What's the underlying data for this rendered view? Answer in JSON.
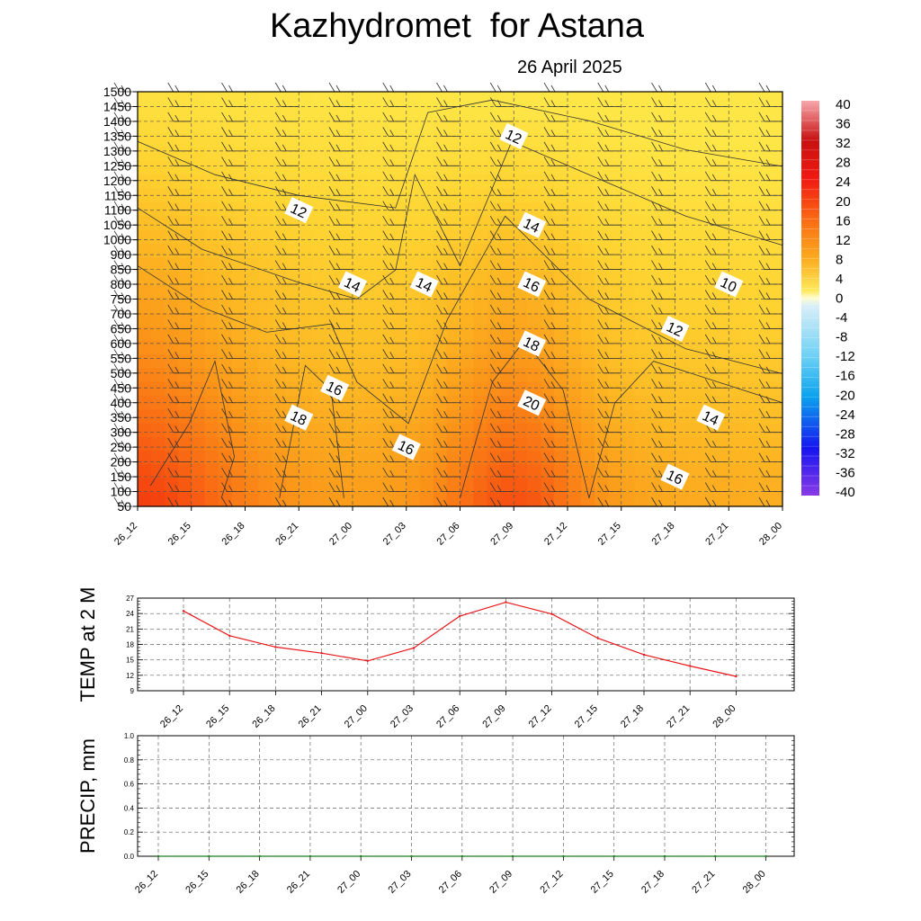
{
  "title": "Kazhydromet  for Astana",
  "subtitle": "26 April 2025",
  "chart_data": [
    {
      "type": "heatmap",
      "ylabel": "",
      "times": [
        "26_12",
        "26_15",
        "26_18",
        "26_21",
        "27_00",
        "27_03",
        "27_06",
        "27_09",
        "27_12",
        "27_15",
        "27_18",
        "27_21",
        "28_00"
      ],
      "levels": [
        50,
        100,
        150,
        200,
        250,
        300,
        350,
        400,
        450,
        500,
        550,
        600,
        650,
        700,
        750,
        800,
        850,
        900,
        1000,
        1050,
        1100,
        1150,
        1200,
        1250,
        1300,
        1350,
        1400,
        1450,
        1500
      ],
      "ylim": [
        50,
        1500
      ],
      "colorbar_labels": [
        "40",
        "36",
        "32",
        "28",
        "24",
        "20",
        "16",
        "12",
        "8",
        "4",
        "0",
        "-4",
        "-8",
        "-12",
        "-16",
        "-20",
        "-24",
        "-28",
        "-32",
        "-36",
        "-40"
      ],
      "contour_labels": [
        {
          "text": "12",
          "time": "27_09",
          "level": 1350
        },
        {
          "text": "12",
          "time": "26_21",
          "level": 1100
        },
        {
          "text": "14",
          "time": "27_10",
          "level": 1050
        },
        {
          "text": "14",
          "time": "27_00",
          "level": 800
        },
        {
          "text": "14",
          "time": "27_04",
          "level": 800
        },
        {
          "text": "16",
          "time": "27_10",
          "level": 800
        },
        {
          "text": "10",
          "time": "27_21",
          "level": 800
        },
        {
          "text": "12",
          "time": "27_18",
          "level": 650
        },
        {
          "text": "18",
          "time": "27_10",
          "level": 600
        },
        {
          "text": "16",
          "time": "26_23",
          "level": 450
        },
        {
          "text": "20",
          "time": "27_10",
          "level": 400
        },
        {
          "text": "18",
          "time": "26_21",
          "level": 350
        },
        {
          "text": "14",
          "time": "27_20",
          "level": 350
        },
        {
          "text": "16",
          "time": "27_03",
          "level": 250
        },
        {
          "text": "16",
          "time": "27_18",
          "level": 150
        }
      ]
    },
    {
      "type": "line",
      "ylabel": "TEMP at 2 M",
      "categories": [
        "26_12",
        "26_15",
        "26_18",
        "26_21",
        "27_00",
        "27_03",
        "27_06",
        "27_09",
        "27_12",
        "27_15",
        "27_18",
        "27_21",
        "28_00"
      ],
      "values": [
        24.5,
        19.7,
        17.5,
        16.3,
        14.8,
        17.3,
        23.5,
        26.2,
        23.9,
        19.2,
        16.0,
        13.8,
        11.8
      ],
      "ylim": [
        9,
        27
      ],
      "yticks": [
        "9",
        "12",
        "15",
        "18",
        "21",
        "24",
        "27"
      ],
      "color": "#e8161b"
    },
    {
      "type": "line",
      "ylabel": "PRECIP, mm",
      "categories": [
        "26_12",
        "26_15",
        "26_18",
        "26_21",
        "27_00",
        "27_03",
        "27_06",
        "27_09",
        "27_12",
        "27_15",
        "27_18",
        "27_21",
        "28_00"
      ],
      "values": [
        0,
        0,
        0,
        0,
        0,
        0,
        0,
        0,
        0,
        0,
        0,
        0,
        0
      ],
      "ylim": [
        0,
        1
      ],
      "yticks": [
        "0.0",
        "0.2",
        "0.4",
        "0.6",
        "0.8",
        "1.0"
      ],
      "color": "#1e7d1e"
    }
  ]
}
